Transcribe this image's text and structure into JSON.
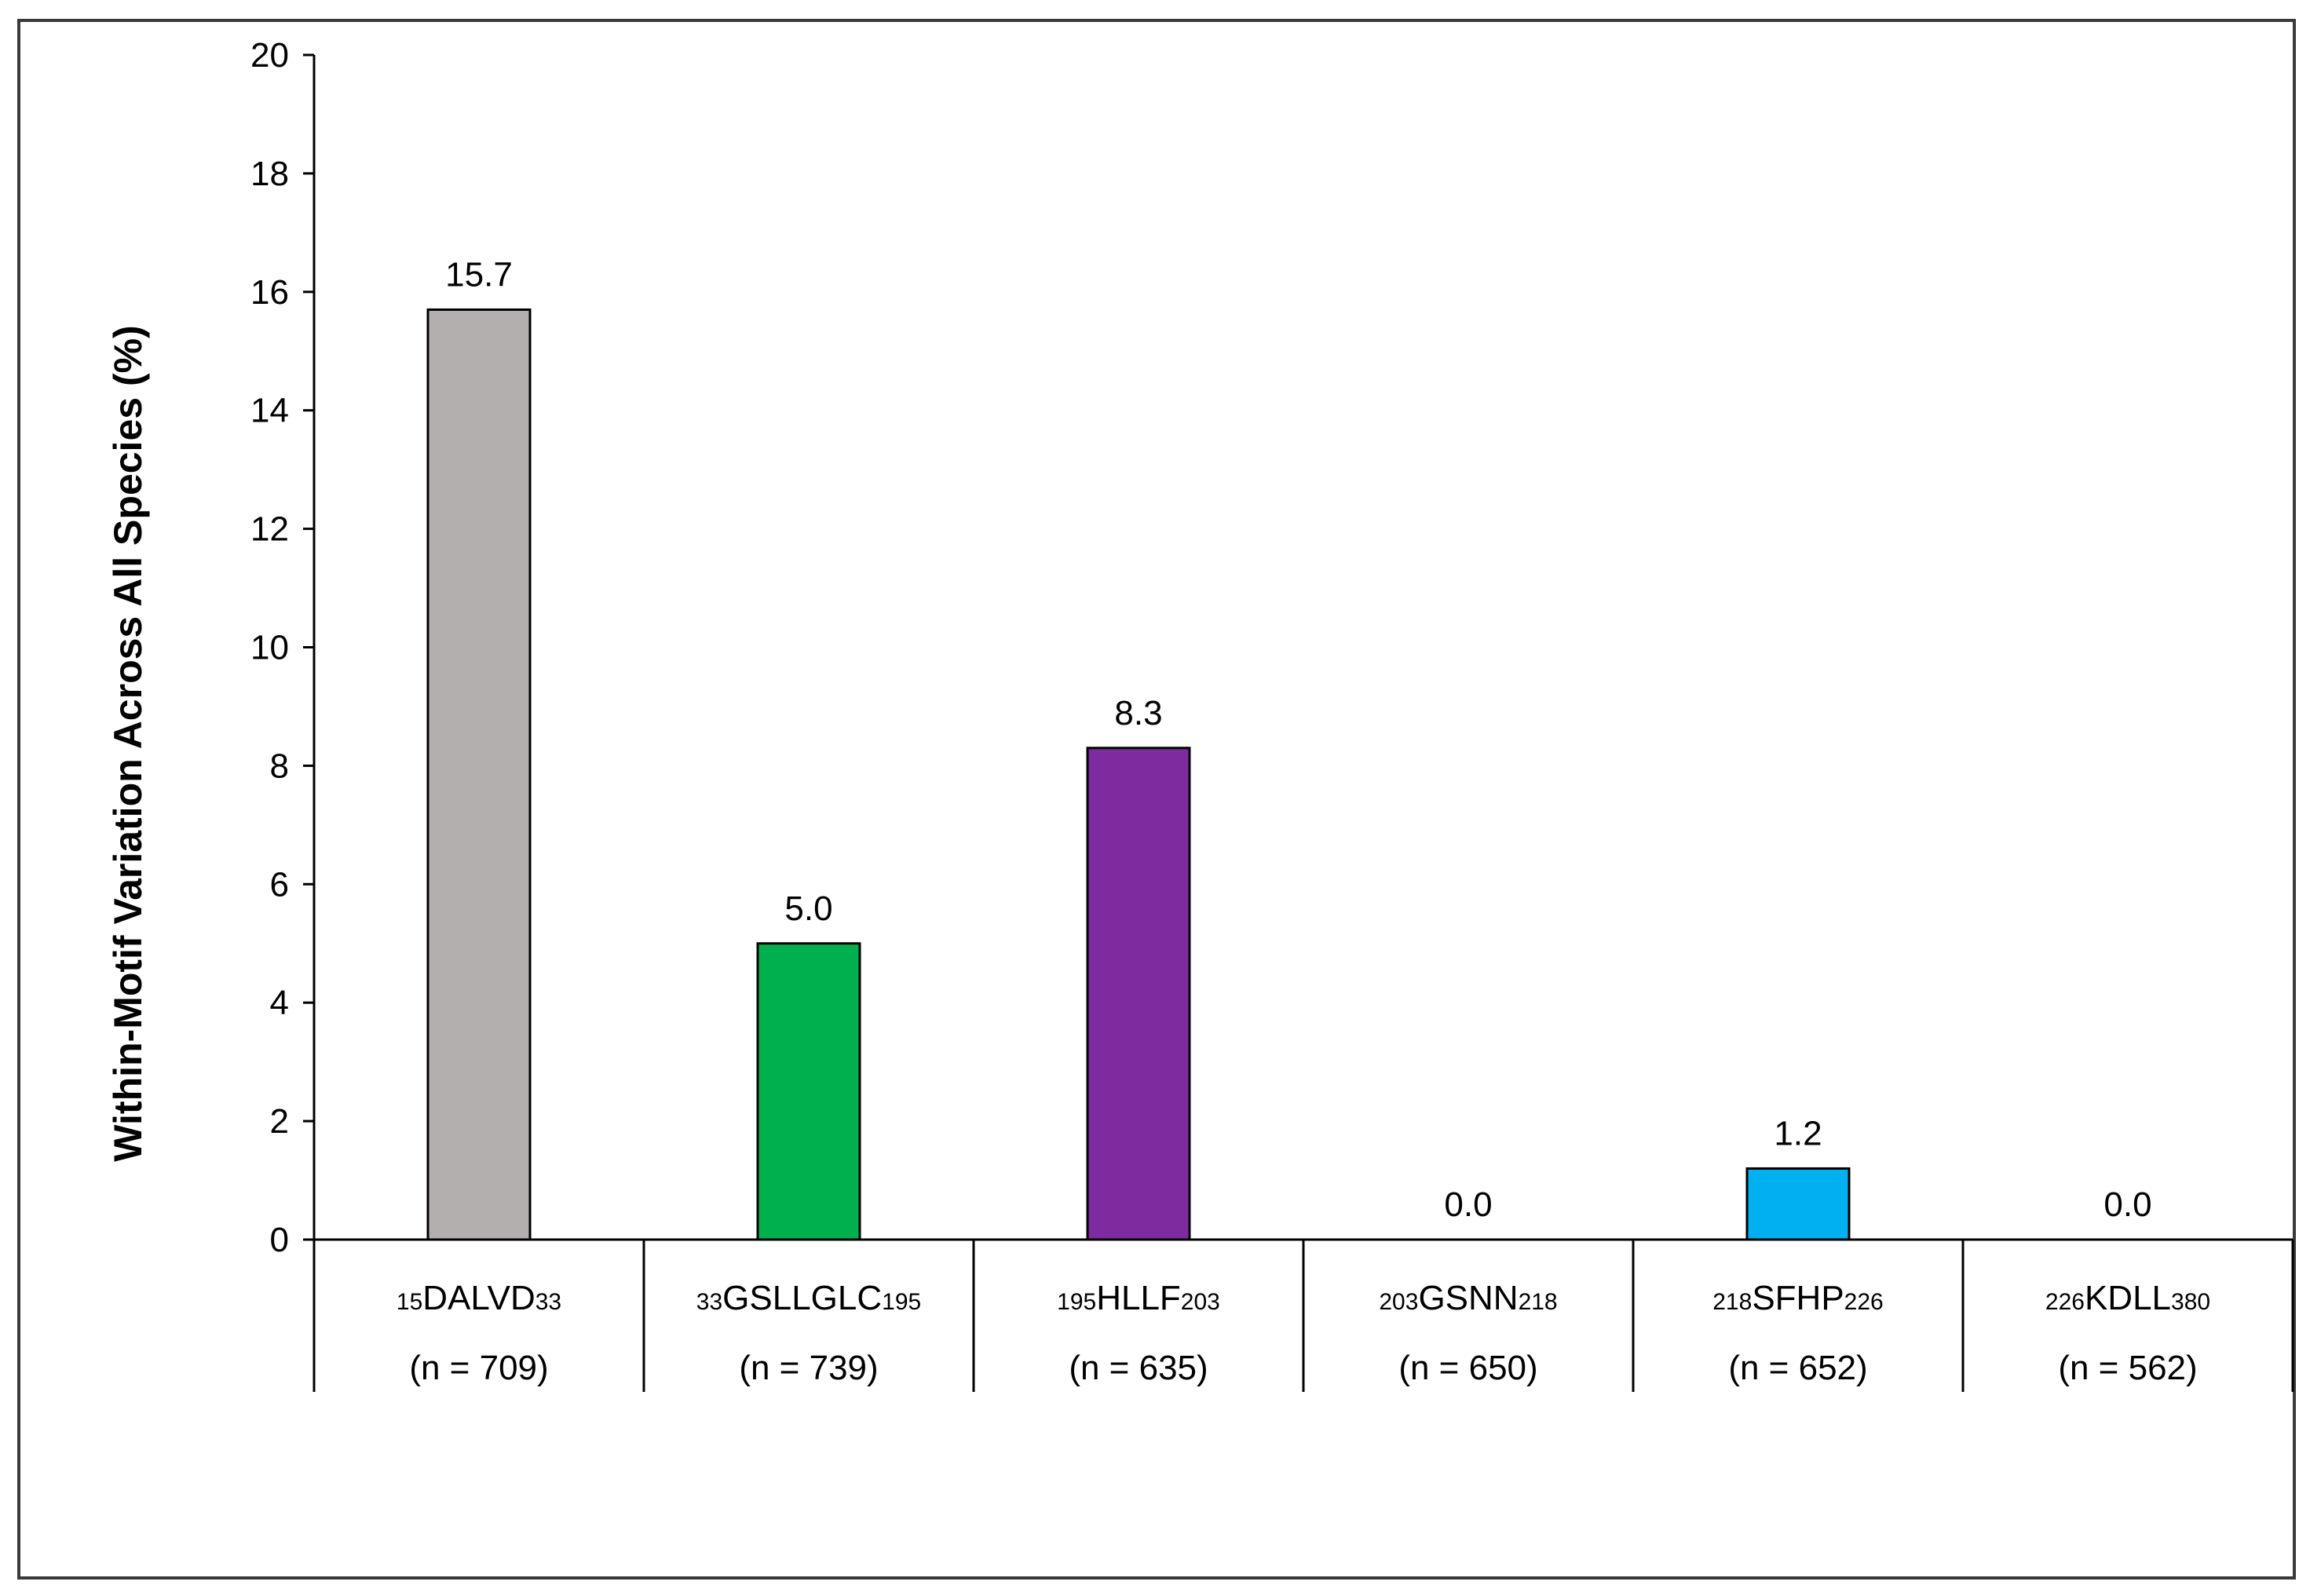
{
  "chart_data": {
    "type": "bar",
    "title": "",
    "xlabel": "",
    "ylabel": "Within-Motif Variation Across All Species (%)",
    "ylim": [
      0,
      20
    ],
    "yticks": [
      "0",
      "2",
      "4",
      "6",
      "8",
      "10",
      "12",
      "14",
      "16",
      "18",
      "20"
    ],
    "grid": false,
    "legend": "none",
    "categories": [
      {
        "pre": "15",
        "motif": "DALVD",
        "post": "33",
        "n": "(n = 709)"
      },
      {
        "pre": "33",
        "motif": "GSLLGLC",
        "post": "195",
        "n": "(n = 739)"
      },
      {
        "pre": "195",
        "motif": "HLLF",
        "post": "203",
        "n": "(n = 635)"
      },
      {
        "pre": "203",
        "motif": "GSNN",
        "post": "218",
        "n": "(n = 650)"
      },
      {
        "pre": "218",
        "motif": "SFHP",
        "post": "226",
        "n": "(n = 652)"
      },
      {
        "pre": "226",
        "motif": "KDLL",
        "post": "380",
        "n": "(n = 562)"
      }
    ],
    "values": [
      15.7,
      5.0,
      8.3,
      0.0,
      1.2,
      0.0
    ],
    "data_labels": [
      "15.7",
      "5.0",
      "8.3",
      "0.0",
      "1.2",
      "0.0"
    ],
    "colors": [
      "#b3afae",
      "#00b04f",
      "#7e2ba0",
      "#ffffff",
      "#00b0f0",
      "#ffffff"
    ]
  }
}
